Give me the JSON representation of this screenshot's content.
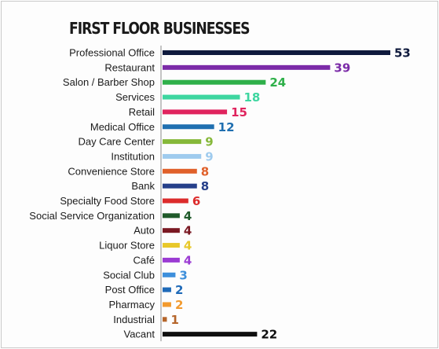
{
  "chart_data": {
    "type": "bar",
    "orientation": "horizontal",
    "title": "FIRST FLOOR BUSINESSES",
    "xlabel": "",
    "ylabel": "",
    "xlim": [
      0,
      53
    ],
    "grid": false,
    "legend": "none",
    "categories": [
      "Professional Office",
      "Restaurant",
      "Salon / Barber Shop",
      "Services",
      "Retail",
      "Medical Office",
      "Day Care Center",
      "Institution",
      "Convenience Store",
      "Bank",
      "Specialty Food Store",
      "Social Service Organization",
      "Auto",
      "Liquor Store",
      "Café",
      "Social Club",
      "Post Office",
      "Pharmacy",
      "Industrial",
      "Vacant"
    ],
    "values": [
      53,
      39,
      24,
      18,
      15,
      12,
      9,
      9,
      8,
      8,
      6,
      4,
      4,
      4,
      4,
      3,
      2,
      2,
      1,
      22
    ],
    "colors": [
      "#0f1a3d",
      "#7b2ba8",
      "#2fb04a",
      "#3ed6a0",
      "#e0245e",
      "#1f6fb0",
      "#86b83a",
      "#9fcbee",
      "#e0602a",
      "#253f8a",
      "#dc2b2b",
      "#1f5a2a",
      "#7a1822",
      "#e8c82a",
      "#9b3bd3",
      "#3d8fdb",
      "#1f6ab8",
      "#f29a2e",
      "#b5652a",
      "#0f0f0f"
    ]
  }
}
